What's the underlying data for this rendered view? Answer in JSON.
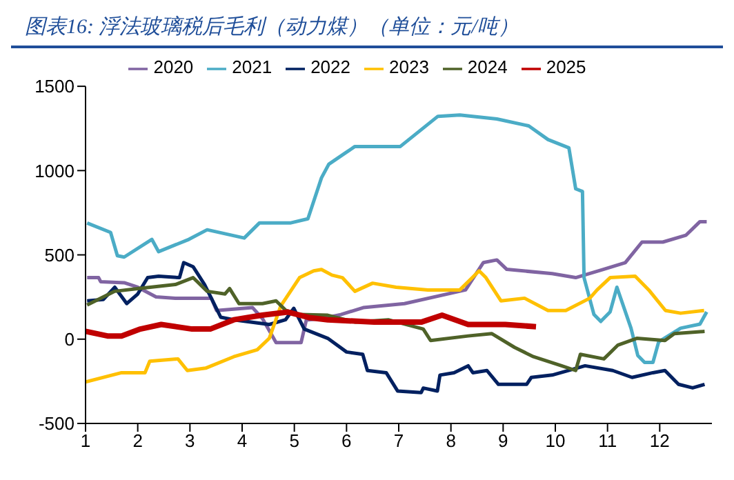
{
  "chart_data": {
    "type": "line",
    "title": "图表16: 浮法玻璃税后毛利（动力煤）（单位：元/吨）",
    "xlim": [
      1,
      13
    ],
    "xticks": [
      1,
      2,
      3,
      4,
      5,
      6,
      7,
      8,
      9,
      10,
      11,
      12
    ],
    "ylim": [
      -500,
      1500
    ],
    "yticks": [
      -500,
      0,
      500,
      1000,
      1500
    ],
    "grid": false,
    "legend": "top",
    "marker": "none",
    "line_style": "solid",
    "series": [
      {
        "name": "2020",
        "color": "#8064a2",
        "x": [
          1.03,
          1.25,
          1.29,
          1.74,
          2.0,
          2.35,
          2.72,
          3.41,
          3.51,
          4.2,
          4.39,
          4.65,
          5.13,
          5.23,
          5.52,
          5.89,
          6.32,
          7.11,
          8.28,
          8.62,
          8.88,
          9.07,
          9.94,
          10.39,
          10.92,
          11.34,
          11.66,
          12.06,
          12.5,
          12.77,
          12.9
        ],
        "values": [
          365,
          365,
          341,
          335,
          308,
          251,
          243,
          243,
          170,
          187,
          122,
          -20,
          -20,
          114,
          122,
          146,
          187,
          211,
          292,
          454,
          470,
          414,
          389,
          365,
          414,
          454,
          576,
          576,
          616,
          697,
          697
        ]
      },
      {
        "name": "2021",
        "color": "#4bacc6",
        "x": [
          1.03,
          1.48,
          1.61,
          1.74,
          2.27,
          2.4,
          2.98,
          3.33,
          4.04,
          4.33,
          4.92,
          5.26,
          5.52,
          5.66,
          5.97,
          6.16,
          7.03,
          7.75,
          8.17,
          8.88,
          9.49,
          9.86,
          10.26,
          10.39,
          10.52,
          10.55,
          10.74,
          10.87,
          11.05,
          11.18,
          11.45,
          11.58,
          11.71,
          11.87,
          11.98,
          12.4,
          12.77,
          12.9
        ],
        "values": [
          689,
          633,
          495,
          487,
          592,
          519,
          592,
          649,
          600,
          689,
          689,
          714,
          957,
          1038,
          1103,
          1143,
          1143,
          1322,
          1330,
          1306,
          1265,
          1184,
          1135,
          892,
          876,
          365,
          146,
          105,
          162,
          308,
          65,
          -97,
          -138,
          -138,
          -16,
          65,
          89,
          162
        ]
      },
      {
        "name": "2022",
        "color": "#002060",
        "x": [
          1.03,
          1.34,
          1.56,
          1.79,
          2.0,
          2.19,
          2.4,
          2.8,
          2.88,
          3.06,
          3.28,
          3.41,
          3.59,
          3.84,
          4.52,
          4.83,
          4.99,
          5.19,
          5.64,
          6.0,
          6.31,
          6.4,
          6.76,
          6.98,
          7.43,
          7.47,
          7.74,
          7.79,
          8.06,
          8.33,
          8.42,
          8.69,
          8.91,
          9.45,
          9.54,
          9.94,
          10.57,
          11.1,
          11.47,
          11.87,
          12.1,
          12.36,
          12.63,
          12.86
        ],
        "values": [
          227,
          235,
          308,
          211,
          268,
          365,
          373,
          365,
          454,
          430,
          324,
          243,
          130,
          115,
          87,
          115,
          183,
          60,
          5,
          -76,
          -90,
          -186,
          -199,
          -308,
          -317,
          -290,
          -308,
          -213,
          -199,
          -158,
          -199,
          -186,
          -268,
          -268,
          -227,
          -213,
          -158,
          -186,
          -227,
          -199,
          -186,
          -268,
          -289,
          -268
        ]
      },
      {
        "name": "2023",
        "color": "#ffc000",
        "x": [
          1.0,
          1.69,
          2.14,
          2.23,
          2.77,
          2.95,
          3.3,
          3.84,
          4.29,
          4.52,
          4.74,
          5.1,
          5.37,
          5.52,
          5.72,
          5.92,
          6.16,
          6.5,
          6.95,
          7.56,
          8.17,
          8.41,
          8.54,
          8.67,
          8.96,
          9.41,
          9.86,
          10.2,
          10.66,
          10.8,
          11.05,
          11.53,
          11.79,
          12.11,
          12.4,
          12.85
        ],
        "values": [
          -254,
          -199,
          -199,
          -131,
          -117,
          -186,
          -172,
          -104,
          -63,
          5,
          197,
          365,
          405,
          413,
          380,
          365,
          284,
          332,
          308,
          292,
          292,
          365,
          405,
          365,
          227,
          243,
          170,
          170,
          243,
          292,
          365,
          373,
          292,
          170,
          154,
          170
        ]
      },
      {
        "name": "2024",
        "color": "#4f6228",
        "x": [
          1.03,
          1.56,
          2.0,
          2.72,
          3.06,
          3.33,
          3.67,
          3.76,
          3.94,
          4.39,
          4.65,
          4.84,
          5.1,
          5.64,
          6.17,
          6.8,
          7.47,
          7.61,
          8.33,
          8.78,
          9.22,
          9.58,
          10.12,
          10.39,
          10.48,
          10.93,
          11.2,
          11.56,
          12.1,
          12.28,
          12.86
        ],
        "values": [
          203,
          284,
          300,
          324,
          365,
          284,
          268,
          300,
          211,
          211,
          227,
          170,
          146,
          142,
          101,
          115,
          60,
          -8,
          19,
          33,
          -49,
          -104,
          -158,
          -186,
          -90,
          -117,
          -35,
          5,
          -8,
          33,
          46
        ]
      },
      {
        "name": "2025",
        "color": "#c00000",
        "x": [
          1.0,
          1.42,
          1.69,
          2.05,
          2.45,
          3.04,
          3.39,
          3.84,
          4.38,
          4.87,
          5.28,
          5.64,
          6.53,
          7.43,
          7.83,
          8.33,
          9.04,
          9.63
        ],
        "values": [
          46,
          19,
          19,
          60,
          87,
          60,
          60,
          115,
          142,
          161,
          128,
          115,
          101,
          101,
          142,
          87,
          87,
          74
        ]
      }
    ]
  }
}
